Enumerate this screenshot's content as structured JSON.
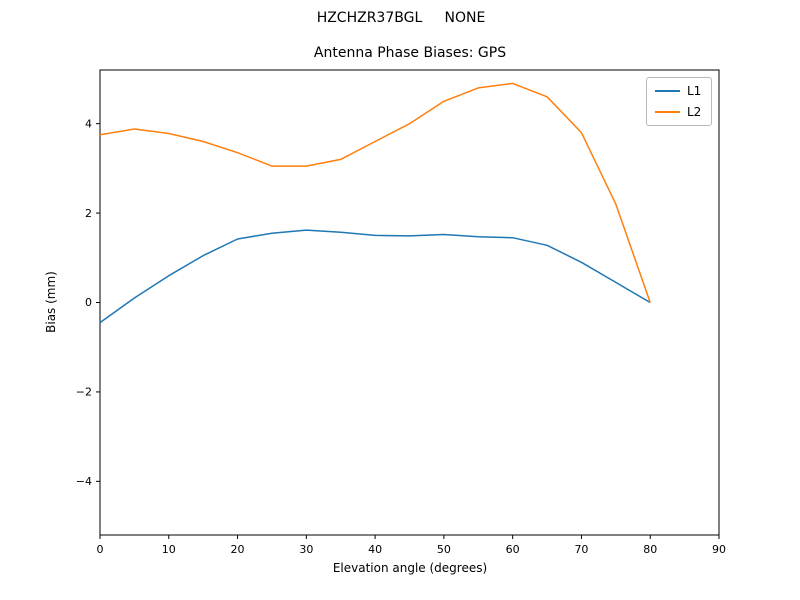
{
  "chart_data": {
    "type": "line",
    "suptitle": "HZCHZR37BGL     NONE",
    "title": "Antenna Phase Biases: GPS",
    "xlabel": "Elevation angle (degrees)",
    "ylabel": "Bias (mm)",
    "xlim": [
      0,
      90
    ],
    "ylim": [
      -5.2,
      5.2
    ],
    "xticks": [
      0,
      10,
      20,
      30,
      40,
      50,
      60,
      70,
      80,
      90
    ],
    "yticks": [
      -4,
      -2,
      0,
      2,
      4
    ],
    "grid": false,
    "legend_position": "upper right",
    "x": [
      0,
      5,
      10,
      15,
      20,
      25,
      30,
      35,
      40,
      45,
      50,
      55,
      60,
      65,
      70,
      75,
      80
    ],
    "series": [
      {
        "name": "L1",
        "color": "#1f77b4",
        "values": [
          -0.45,
          0.1,
          0.6,
          1.05,
          1.42,
          1.55,
          1.62,
          1.57,
          1.5,
          1.49,
          1.52,
          1.47,
          1.45,
          1.28,
          0.9,
          0.45,
          0.0
        ]
      },
      {
        "name": "L2",
        "color": "#ff7f0e",
        "values": [
          3.75,
          3.88,
          3.78,
          3.6,
          3.35,
          3.05,
          3.05,
          3.2,
          3.6,
          4.0,
          4.5,
          4.8,
          4.9,
          4.6,
          3.8,
          2.2,
          0.0
        ]
      }
    ]
  }
}
